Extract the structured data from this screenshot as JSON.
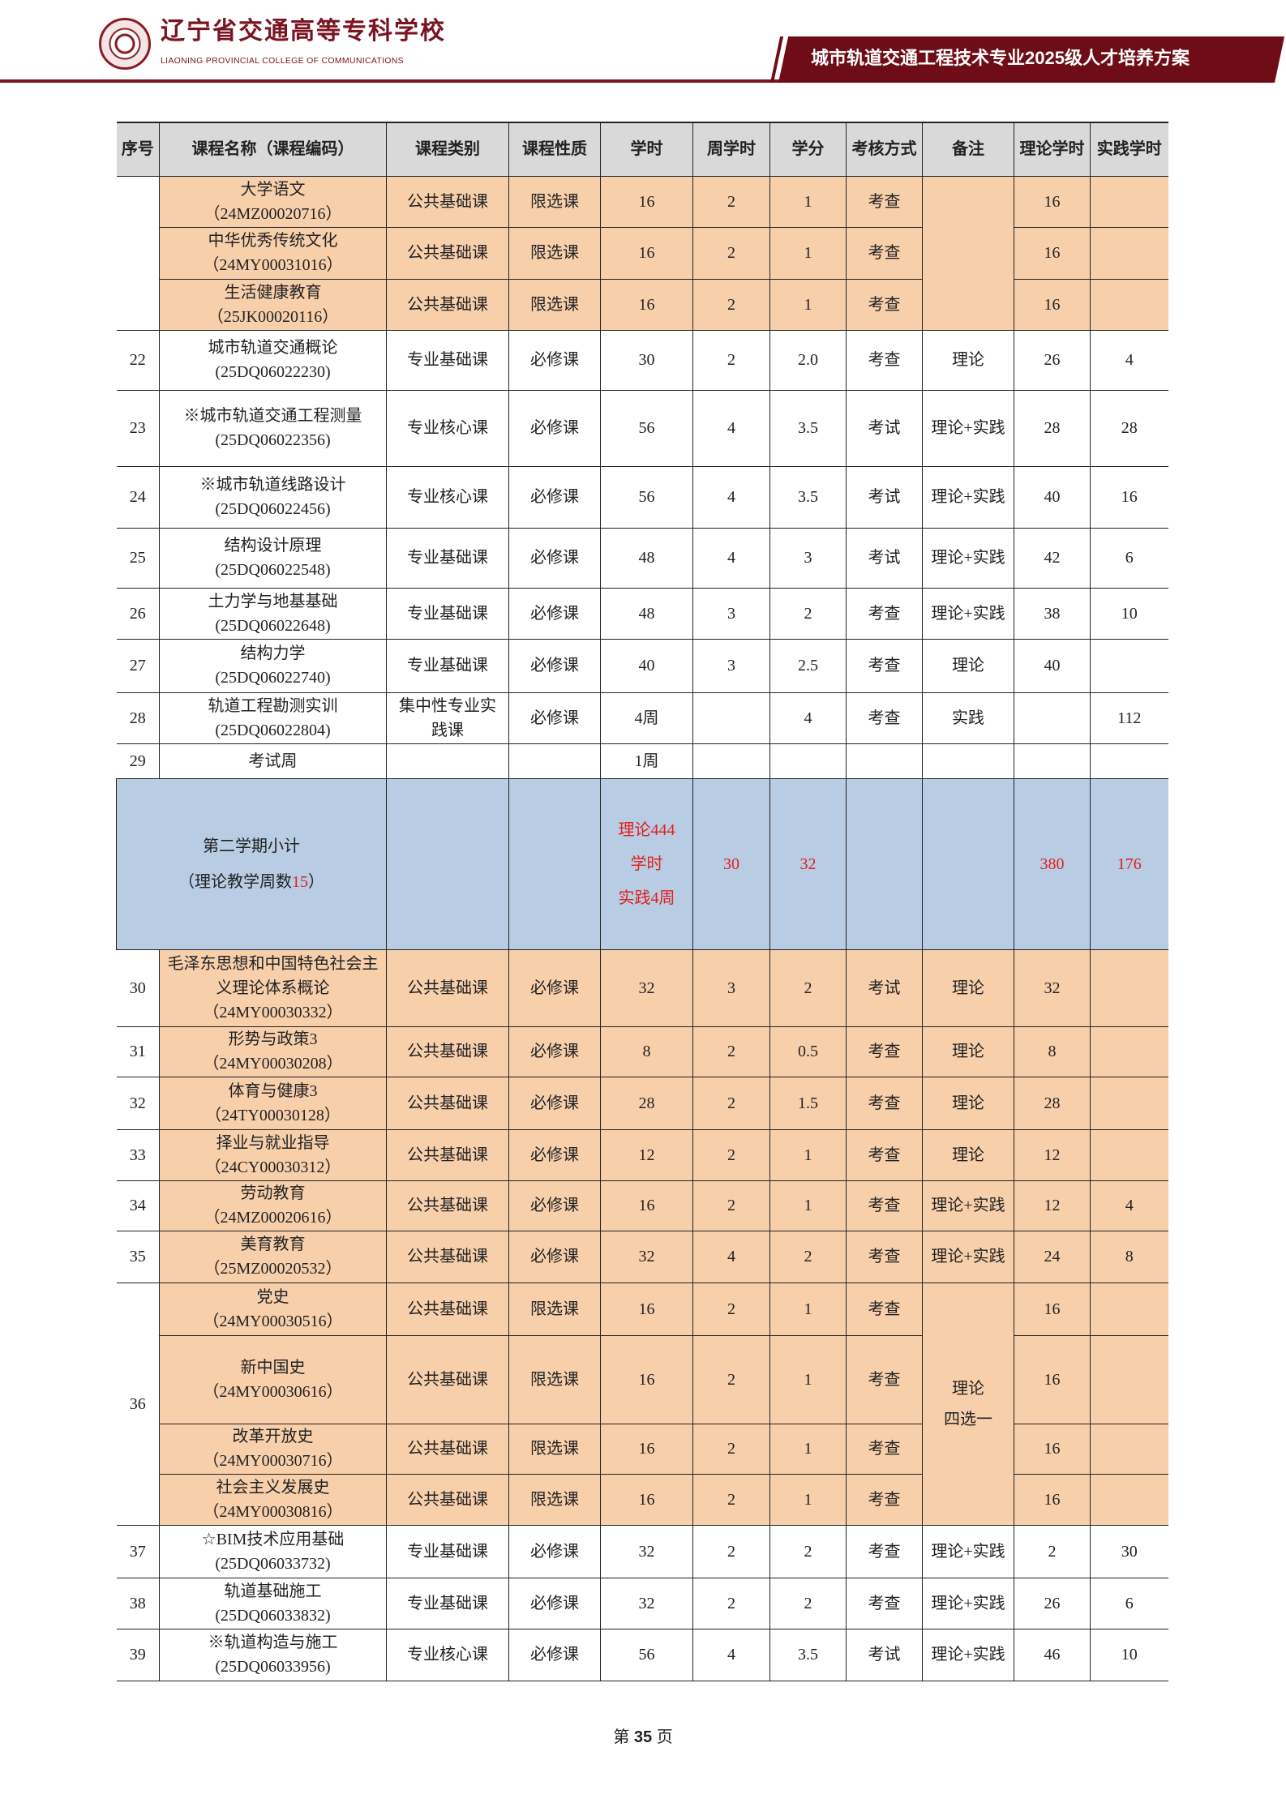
{
  "header": {
    "school_name_cn": "辽宁省交通高等专科学校",
    "school_name_en": "LIAONING PROVINCIAL COLLEGE OF COMMUNICATIONS",
    "doc_title": "城市轨道交通工程技术专业2025级人才培养方案",
    "brand_color": "#6e0d17"
  },
  "table": {
    "columns": [
      "序号",
      "课程名称（课程编码）",
      "课程类别",
      "课程性质",
      "学时",
      "周学时",
      "学分",
      "考核方式",
      "备注",
      "理论学时",
      "实践学时"
    ],
    "groups": [
      {
        "seq": "",
        "note": "",
        "highlight": true,
        "rows": [
          {
            "name": "大学语文",
            "code": "（24MZ00020716）",
            "category": "公共基础课",
            "nature": "限选课",
            "hours": "16",
            "weekly": "2",
            "credits": "1",
            "exam": "考查",
            "theory": "16",
            "practice": ""
          },
          {
            "name": "中华优秀传统文化",
            "code": "（24MY00031016）",
            "category": "公共基础课",
            "nature": "限选课",
            "hours": "16",
            "weekly": "2",
            "credits": "1",
            "exam": "考查",
            "theory": "16",
            "practice": ""
          },
          {
            "name": "生活健康教育",
            "code": "（25JK00020116）",
            "category": "公共基础课",
            "nature": "限选课",
            "hours": "16",
            "weekly": "2",
            "credits": "1",
            "exam": "考查",
            "theory": "16",
            "practice": ""
          }
        ]
      },
      {
        "seq": "22",
        "note": "理论",
        "highlight": false,
        "rows": [
          {
            "name": "城市轨道交通概论",
            "code": "(25DQ06022230)",
            "category": "专业基础课",
            "nature": "必修课",
            "hours": "30",
            "weekly": "2",
            "credits": "2.0",
            "exam": "考查",
            "theory": "26",
            "practice": "4"
          }
        ]
      },
      {
        "seq": "23",
        "note": "理论+实践",
        "highlight": false,
        "rows": [
          {
            "name": "※城市轨道交通工程测量",
            "code": "(25DQ06022356)",
            "category": "专业核心课",
            "nature": "必修课",
            "hours": "56",
            "weekly": "4",
            "credits": "3.5",
            "exam": "考试",
            "theory": "28",
            "practice": "28"
          }
        ]
      },
      {
        "seq": "24",
        "note": "理论+实践",
        "highlight": false,
        "rows": [
          {
            "name": "※城市轨道线路设计",
            "code": "(25DQ06022456)",
            "category": "专业核心课",
            "nature": "必修课",
            "hours": "56",
            "weekly": "4",
            "credits": "3.5",
            "exam": "考试",
            "theory": "40",
            "practice": "16"
          }
        ]
      },
      {
        "seq": "25",
        "note": "理论+实践",
        "highlight": false,
        "rows": [
          {
            "name": "结构设计原理",
            "code": "(25DQ06022548)",
            "category": "专业基础课",
            "nature": "必修课",
            "hours": "48",
            "weekly": "4",
            "credits": "3",
            "exam": "考试",
            "theory": "42",
            "practice": "6"
          }
        ]
      },
      {
        "seq": "26",
        "note": "理论+实践",
        "highlight": false,
        "rows": [
          {
            "name": "土力学与地基基础",
            "code": "(25DQ06022648)",
            "category": "专业基础课",
            "nature": "必修课",
            "hours": "48",
            "weekly": "3",
            "credits": "2",
            "exam": "考查",
            "theory": "38",
            "practice": "10"
          }
        ]
      },
      {
        "seq": "27",
        "note": "理论",
        "highlight": false,
        "rows": [
          {
            "name": "结构力学",
            "code": "(25DQ06022740)",
            "category": "专业基础课",
            "nature": "必修课",
            "hours": "40",
            "weekly": "3",
            "credits": "2.5",
            "exam": "考查",
            "theory": "40",
            "practice": ""
          }
        ]
      },
      {
        "seq": "28",
        "note": "实践",
        "highlight": false,
        "rows": [
          {
            "name": "轨道工程勘测实训",
            "code": "(25DQ06022804)",
            "category": "集中性专业实践课",
            "nature": "必修课",
            "hours": "4周",
            "weekly": "",
            "credits": "4",
            "exam": "考查",
            "theory": "",
            "practice": "112"
          }
        ]
      },
      {
        "seq": "29",
        "note": "",
        "highlight": false,
        "rows": [
          {
            "name": "考试周",
            "code": "",
            "category": "",
            "nature": "",
            "hours": "1周",
            "weekly": "",
            "credits": "",
            "exam": "",
            "theory": "",
            "practice": ""
          }
        ]
      },
      {
        "subtotal": true,
        "label": "第二学期小计",
        "weeks_prefix": "（理论教学周数",
        "weeks": "15",
        "weeks_suffix": "）",
        "hours_lines": [
          "理论444",
          "学时",
          "实践4周"
        ],
        "weekly": "30",
        "credits": "32",
        "theory": "380",
        "practice": "176",
        "accent": "#e0201c"
      },
      {
        "seq": "30",
        "note": "理论",
        "highlight": true,
        "rows": [
          {
            "name": "毛泽东思想和中国特色社会主义理论体系概论",
            "code": "（24MY00030332）",
            "category": "公共基础课",
            "nature": "必修课",
            "hours": "32",
            "weekly": "3",
            "credits": "2",
            "exam": "考试",
            "theory": "32",
            "practice": ""
          }
        ]
      },
      {
        "seq": "31",
        "note": "理论",
        "highlight": true,
        "rows": [
          {
            "name": "形势与政策3",
            "code": "（24MY00030208）",
            "category": "公共基础课",
            "nature": "必修课",
            "hours": "8",
            "weekly": "2",
            "credits": "0.5",
            "exam": "考查",
            "theory": "8",
            "practice": ""
          }
        ]
      },
      {
        "seq": "32",
        "note": "理论",
        "highlight": true,
        "rows": [
          {
            "name": "体育与健康3",
            "code": "（24TY00030128）",
            "category": "公共基础课",
            "nature": "必修课",
            "hours": "28",
            "weekly": "2",
            "credits": "1.5",
            "exam": "考查",
            "theory": "28",
            "practice": ""
          }
        ]
      },
      {
        "seq": "33",
        "note": "理论",
        "highlight": true,
        "rows": [
          {
            "name": "择业与就业指导",
            "code": "（24CY00030312）",
            "category": "公共基础课",
            "nature": "必修课",
            "hours": "12",
            "weekly": "2",
            "credits": "1",
            "exam": "考查",
            "theory": "12",
            "practice": ""
          }
        ]
      },
      {
        "seq": "34",
        "note": "理论+实践",
        "highlight": true,
        "rows": [
          {
            "name": "劳动教育",
            "code": "（24MZ00020616）",
            "category": "公共基础课",
            "nature": "必修课",
            "hours": "16",
            "weekly": "2",
            "credits": "1",
            "exam": "考查",
            "theory": "12",
            "practice": "4"
          }
        ]
      },
      {
        "seq": "35",
        "note": "理论+实践",
        "highlight": true,
        "rows": [
          {
            "name": "美育教育",
            "code": "（25MZ00020532）",
            "category": "公共基础课",
            "nature": "必修课",
            "hours": "32",
            "weekly": "4",
            "credits": "2",
            "exam": "考查",
            "theory": "24",
            "practice": "8"
          }
        ]
      },
      {
        "seq": "36",
        "note": "理论\n四选一",
        "highlight": true,
        "rows": [
          {
            "name": "党史",
            "code": "（24MY00030516）",
            "category": "公共基础课",
            "nature": "限选课",
            "hours": "16",
            "weekly": "2",
            "credits": "1",
            "exam": "考查",
            "theory": "16",
            "practice": ""
          },
          {
            "name": "新中国史",
            "code": "（24MY00030616）",
            "category": "公共基础课",
            "nature": "限选课",
            "hours": "16",
            "weekly": "2",
            "credits": "1",
            "exam": "考查",
            "theory": "16",
            "practice": ""
          },
          {
            "name": "改革开放史",
            "code": "（24MY00030716）",
            "category": "公共基础课",
            "nature": "限选课",
            "hours": "16",
            "weekly": "2",
            "credits": "1",
            "exam": "考查",
            "theory": "16",
            "practice": ""
          },
          {
            "name": "社会主义发展史",
            "code": "（24MY00030816）",
            "category": "公共基础课",
            "nature": "限选课",
            "hours": "16",
            "weekly": "2",
            "credits": "1",
            "exam": "考查",
            "theory": "16",
            "practice": ""
          }
        ]
      },
      {
        "seq": "37",
        "note": "理论+实践",
        "highlight": false,
        "rows": [
          {
            "name": "☆BIM技术应用基础",
            "code": "(25DQ06033732)",
            "category": "专业基础课",
            "nature": "必修课",
            "hours": "32",
            "weekly": "2",
            "credits": "2",
            "exam": "考查",
            "theory": "2",
            "practice": "30"
          }
        ]
      },
      {
        "seq": "38",
        "note": "理论+实践",
        "highlight": false,
        "rows": [
          {
            "name": "轨道基础施工",
            "code": "(25DQ06033832)",
            "category": "专业基础课",
            "nature": "必修课",
            "hours": "32",
            "weekly": "2",
            "credits": "2",
            "exam": "考查",
            "theory": "26",
            "practice": "6"
          }
        ]
      },
      {
        "seq": "39",
        "note": "理论+实践",
        "highlight": false,
        "rows": [
          {
            "name": "※轨道构造与施工",
            "code": "(25DQ06033956)",
            "category": "专业核心课",
            "nature": "必修课",
            "hours": "56",
            "weekly": "4",
            "credits": "3.5",
            "exam": "考试",
            "theory": "46",
            "practice": "10"
          }
        ]
      }
    ],
    "highlight_color": "#f8cfab",
    "subtotal_color": "#b8cce4"
  },
  "footer": {
    "prefix": "第",
    "page": "35",
    "suffix": "页"
  }
}
